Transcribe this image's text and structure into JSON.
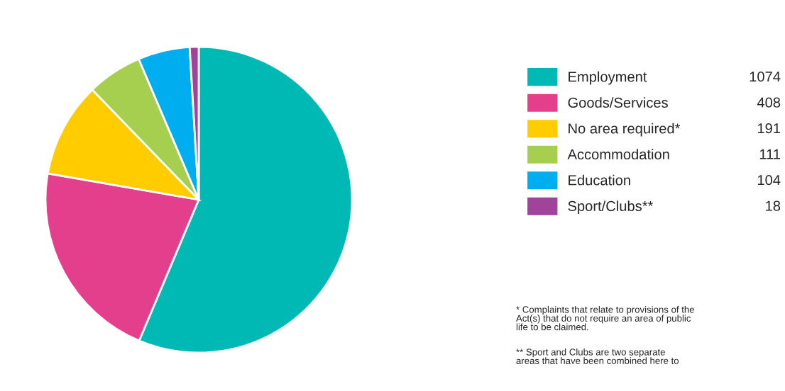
{
  "chart_data": {
    "type": "pie",
    "categories": [
      "Employment",
      "Goods/Services",
      "No area required*",
      "Accommodation",
      "Education",
      "Sport/Clubs**"
    ],
    "values": [
      1074,
      408,
      191,
      111,
      104,
      18
    ],
    "value_labels": [
      "1074",
      "408",
      "191",
      "111",
      "104",
      "18"
    ],
    "colors": [
      "#00b8b4",
      "#e33f8c",
      "#ffcc00",
      "#a6cf4f",
      "#00aeef",
      "#a0449a"
    ],
    "legend": "right",
    "annotations": [
      "* Complaints that relate to provisions of the\nAct(s) that do not require an area of public\nlife to be claimed.",
      "** Sport and Clubs are two separate\nareas that have been combined here to"
    ]
  }
}
